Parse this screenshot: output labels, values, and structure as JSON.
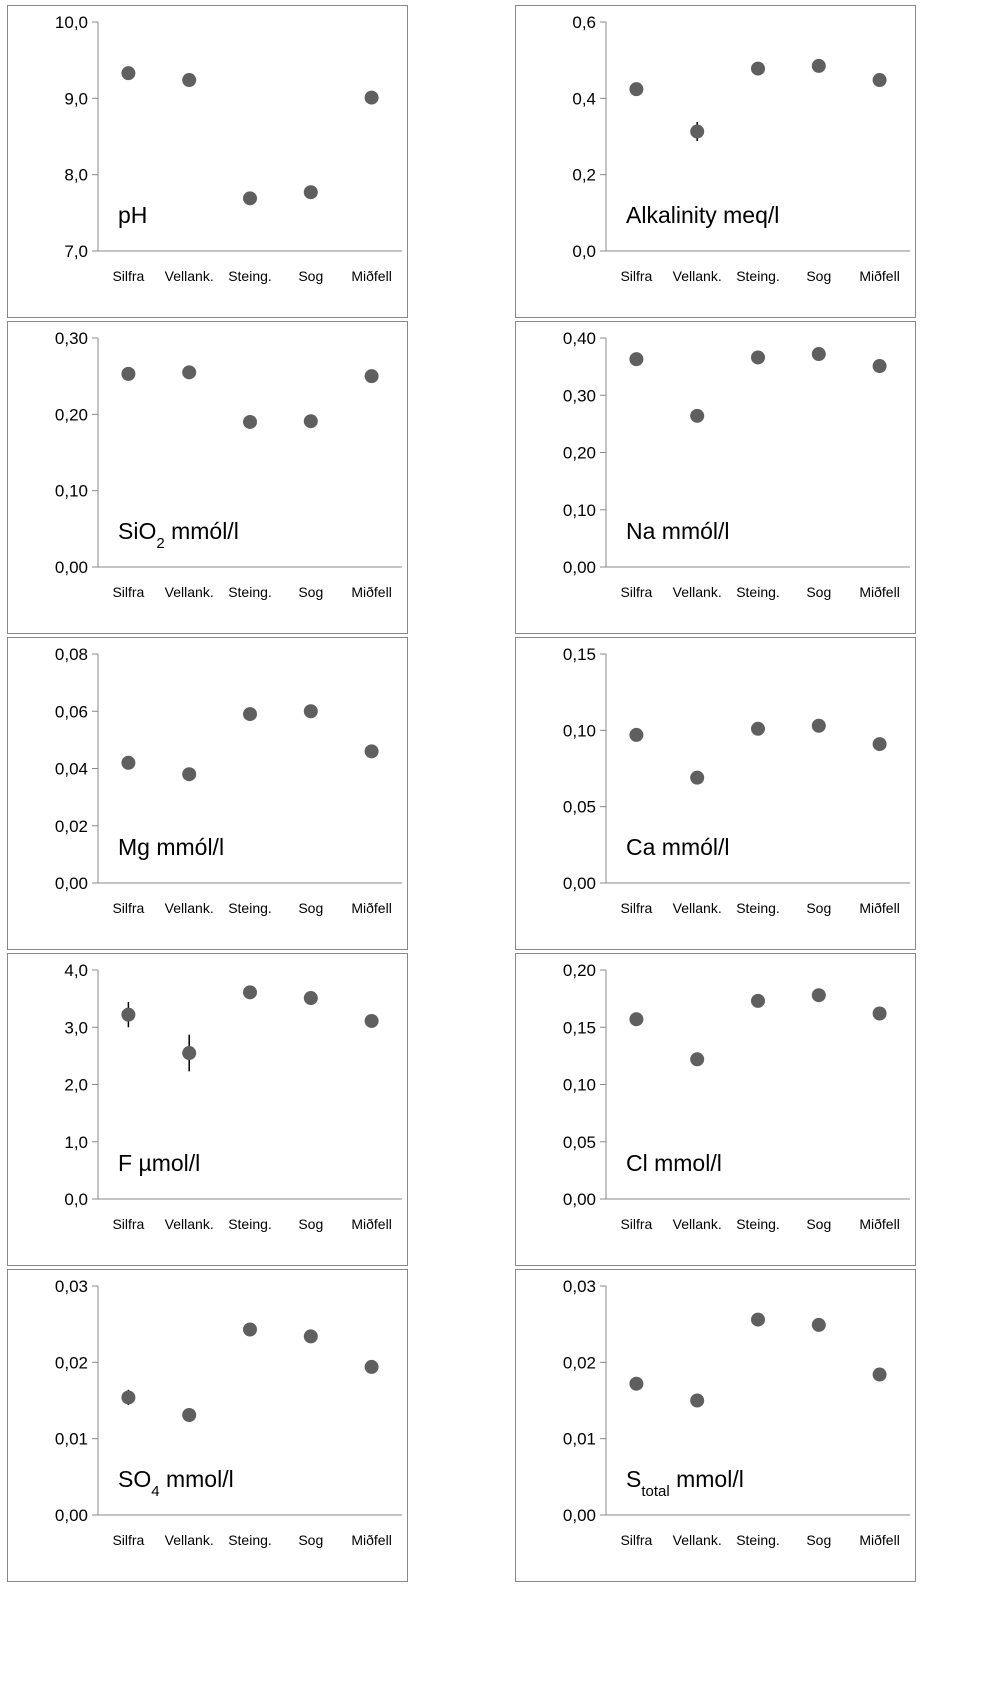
{
  "chart_data": [
    {
      "type": "dot",
      "label_parts": [
        {
          "text": "pH"
        }
      ],
      "categories": [
        "Silfra",
        "Vellank.",
        "Steing.",
        "Sog",
        "Miðfell"
      ],
      "values": [
        9.33,
        9.24,
        7.69,
        7.77,
        9.01
      ],
      "errors": [
        null,
        null,
        null,
        null,
        null
      ],
      "color": "#5f5f5f",
      "ylim": [
        7,
        10
      ],
      "yticks": [
        {
          "value": 7,
          "label": "7,0"
        },
        {
          "value": 8,
          "label": "8,0"
        },
        {
          "value": 9,
          "label": "9,0"
        },
        {
          "value": 10,
          "label": "10,0"
        }
      ]
    },
    {
      "type": "dot",
      "label_parts": [
        {
          "text": "Alkalinity meq/l"
        }
      ],
      "categories": [
        "Silfra",
        "Vellank.",
        "Steing.",
        "Sog",
        "Miðfell"
      ],
      "values": [
        0.424,
        0.313,
        0.478,
        0.485,
        0.448
      ],
      "errors": [
        null,
        0.025,
        null,
        null,
        null
      ],
      "color": "#5f5f5f",
      "ylim": [
        0,
        0.6
      ],
      "yticks": [
        {
          "value": 0,
          "label": "0,0"
        },
        {
          "value": 0.2,
          "label": "0,2"
        },
        {
          "value": 0.4,
          "label": "0,4"
        },
        {
          "value": 0.6,
          "label": "0,6"
        }
      ]
    },
    {
      "type": "dot",
      "label_parts": [
        {
          "text": "SiO"
        },
        {
          "text": "2",
          "subscript": true
        },
        {
          "text": " mmól/l"
        }
      ],
      "categories": [
        "Silfra",
        "Vellank.",
        "Steing.",
        "Sog",
        "Miðfell"
      ],
      "values": [
        0.253,
        0.255,
        0.19,
        0.191,
        0.25
      ],
      "errors": [
        null,
        null,
        null,
        null,
        null
      ],
      "color": "#5f5f5f",
      "ylim": [
        0,
        0.3
      ],
      "yticks": [
        {
          "value": 0,
          "label": "0,00"
        },
        {
          "value": 0.1,
          "label": "0,10"
        },
        {
          "value": 0.2,
          "label": "0,20"
        },
        {
          "value": 0.3,
          "label": "0,30"
        }
      ]
    },
    {
      "type": "dot",
      "label_parts": [
        {
          "text": "Na mmól/l"
        }
      ],
      "categories": [
        "Silfra",
        "Vellank.",
        "Steing.",
        "Sog",
        "Miðfell"
      ],
      "values": [
        0.363,
        0.264,
        0.366,
        0.372,
        0.351
      ],
      "errors": [
        null,
        null,
        null,
        null,
        null
      ],
      "color": "#5f5f5f",
      "ylim": [
        0,
        0.4
      ],
      "yticks": [
        {
          "value": 0,
          "label": "0,00"
        },
        {
          "value": 0.1,
          "label": "0,10"
        },
        {
          "value": 0.2,
          "label": "0,20"
        },
        {
          "value": 0.3,
          "label": "0,30"
        },
        {
          "value": 0.4,
          "label": "0,40"
        }
      ]
    },
    {
      "type": "dot",
      "label_parts": [
        {
          "text": "Mg mmól/l"
        }
      ],
      "categories": [
        "Silfra",
        "Vellank.",
        "Steing.",
        "Sog",
        "Miðfell"
      ],
      "values": [
        0.042,
        0.038,
        0.059,
        0.06,
        0.046
      ],
      "errors": [
        null,
        null,
        null,
        null,
        null
      ],
      "color": "#5f5f5f",
      "ylim": [
        0,
        0.08
      ],
      "yticks": [
        {
          "value": 0,
          "label": "0,00"
        },
        {
          "value": 0.02,
          "label": "0,02"
        },
        {
          "value": 0.04,
          "label": "0,04"
        },
        {
          "value": 0.06,
          "label": "0,06"
        },
        {
          "value": 0.08,
          "label": "0,08"
        }
      ]
    },
    {
      "type": "dot",
      "label_parts": [
        {
          "text": "Ca mmól/l"
        }
      ],
      "categories": [
        "Silfra",
        "Vellank.",
        "Steing.",
        "Sog",
        "Miðfell"
      ],
      "values": [
        0.097,
        0.069,
        0.101,
        0.103,
        0.091
      ],
      "errors": [
        null,
        null,
        null,
        null,
        null
      ],
      "color": "#5f5f5f",
      "ylim": [
        0,
        0.15
      ],
      "yticks": [
        {
          "value": 0,
          "label": "0,00"
        },
        {
          "value": 0.05,
          "label": "0,05"
        },
        {
          "value": 0.1,
          "label": "0,10"
        },
        {
          "value": 0.15,
          "label": "0,15"
        }
      ]
    },
    {
      "type": "dot",
      "label_parts": [
        {
          "text": "F µmol/l"
        }
      ],
      "categories": [
        "Silfra",
        "Vellank.",
        "Steing.",
        "Sog",
        "Miðfell"
      ],
      "values": [
        3.22,
        2.55,
        3.61,
        3.51,
        3.11
      ],
      "errors": [
        0.22,
        0.32,
        null,
        null,
        null
      ],
      "color": "#5f5f5f",
      "ylim": [
        0,
        4
      ],
      "yticks": [
        {
          "value": 0,
          "label": "0,0"
        },
        {
          "value": 1,
          "label": "1,0"
        },
        {
          "value": 2,
          "label": "2,0"
        },
        {
          "value": 3,
          "label": "3,0"
        },
        {
          "value": 4,
          "label": "4,0"
        }
      ]
    },
    {
      "type": "dot",
      "label_parts": [
        {
          "text": "Cl mmol/l"
        }
      ],
      "categories": [
        "Silfra",
        "Vellank.",
        "Steing.",
        "Sog",
        "Miðfell"
      ],
      "values": [
        0.157,
        0.122,
        0.173,
        0.178,
        0.162
      ],
      "errors": [
        null,
        null,
        null,
        null,
        null
      ],
      "color": "#5f5f5f",
      "ylim": [
        0,
        0.2
      ],
      "yticks": [
        {
          "value": 0,
          "label": "0,00"
        },
        {
          "value": 0.05,
          "label": "0,05"
        },
        {
          "value": 0.1,
          "label": "0,10"
        },
        {
          "value": 0.15,
          "label": "0,15"
        },
        {
          "value": 0.2,
          "label": "0,20"
        }
      ]
    },
    {
      "type": "dot",
      "label_parts": [
        {
          "text": "SO"
        },
        {
          "text": "4",
          "subscript": true
        },
        {
          "text": " mmol/l"
        }
      ],
      "categories": [
        "Silfra",
        "Vellank.",
        "Steing.",
        "Sog",
        "Miðfell"
      ],
      "values": [
        0.0154,
        0.0131,
        0.0243,
        0.0234,
        0.0194
      ],
      "errors": [
        0.001,
        null,
        null,
        null,
        null
      ],
      "color": "#5f5f5f",
      "ylim": [
        0,
        0.03
      ],
      "yticks": [
        {
          "value": 0,
          "label": "0,00"
        },
        {
          "value": 0.01,
          "label": "0,01"
        },
        {
          "value": 0.02,
          "label": "0,02"
        },
        {
          "value": 0.03,
          "label": "0,03"
        }
      ]
    },
    {
      "type": "dot",
      "label_parts": [
        {
          "text": "S"
        },
        {
          "text": "total",
          "subscript": true
        },
        {
          "text": " mmol/l"
        }
      ],
      "categories": [
        "Silfra",
        "Vellank.",
        "Steing.",
        "Sog",
        "Miðfell"
      ],
      "values": [
        0.0172,
        0.015,
        0.0256,
        0.0249,
        0.0184
      ],
      "errors": [
        null,
        0.0008,
        null,
        null,
        null
      ],
      "color": "#5f5f5f",
      "ylim": [
        0,
        0.03
      ],
      "yticks": [
        {
          "value": 0,
          "label": "0,00"
        },
        {
          "value": 0.01,
          "label": "0,01"
        },
        {
          "value": 0.02,
          "label": "0,02"
        },
        {
          "value": 0.03,
          "label": "0,03"
        }
      ]
    }
  ]
}
